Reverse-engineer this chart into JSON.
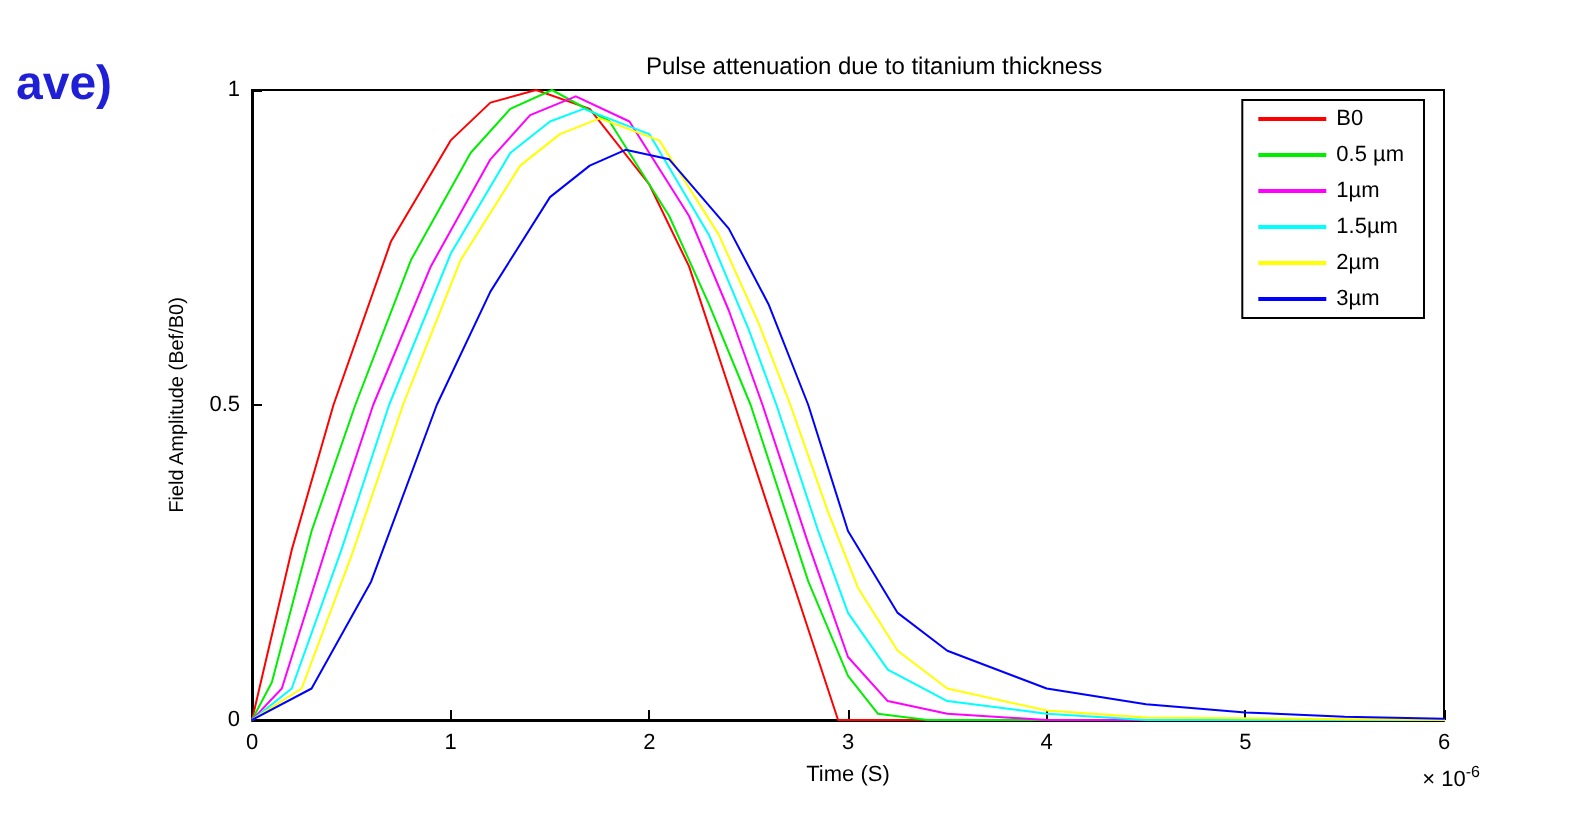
{
  "chart_data": {
    "type": "line",
    "title": "Pulse attenuation due to titanium thickness",
    "xlabel": "Time (S)",
    "ylabel": "Field Amplitude (Bef/B0)",
    "annotations": [
      "ave)",
      "× 10$^{-6}$"
    ],
    "xlim": [
      0,
      6
    ],
    "xticks": [
      0,
      1,
      2,
      3,
      4,
      5,
      6
    ],
    "ylim": [
      0,
      1
    ],
    "yticks": [
      0,
      0.5,
      1
    ],
    "grid": false,
    "legend": "top right",
    "marker": "none",
    "line_style": "solid",
    "series": [
      {
        "name": "B0",
        "color": "#ff0000",
        "x": [
          0,
          0.2,
          0.41,
          0.7,
          1,
          1.2,
          1.43,
          1.7,
          2,
          2.2,
          2.43,
          2.7,
          2.95,
          6
        ],
        "values": [
          0,
          0.27,
          0.5,
          0.76,
          0.92,
          0.98,
          1,
          0.97,
          0.85,
          0.72,
          0.5,
          0.24,
          0,
          0
        ]
      },
      {
        "name": "0.5 µm",
        "color": "#00ee00",
        "x": [
          0,
          0.1,
          0.3,
          0.52,
          0.8,
          1.1,
          1.3,
          1.51,
          1.8,
          2.1,
          2.3,
          2.51,
          2.8,
          3.0,
          3.15,
          3.4,
          6
        ],
        "values": [
          0,
          0.06,
          0.3,
          0.5,
          0.73,
          0.9,
          0.97,
          1,
          0.95,
          0.8,
          0.66,
          0.5,
          0.22,
          0.07,
          0.01,
          0,
          0
        ]
      },
      {
        "name": "1µm",
        "color": "#ff00ff",
        "x": [
          0,
          0.15,
          0.4,
          0.61,
          0.9,
          1.2,
          1.4,
          1.63,
          1.9,
          2.2,
          2.4,
          2.57,
          2.8,
          3.0,
          3.2,
          3.5,
          4,
          6
        ],
        "values": [
          0,
          0.05,
          0.3,
          0.5,
          0.72,
          0.89,
          0.96,
          0.99,
          0.95,
          0.8,
          0.65,
          0.5,
          0.28,
          0.1,
          0.03,
          0.01,
          0,
          0
        ]
      },
      {
        "name": "1.5µm",
        "color": "#00ffff",
        "x": [
          0,
          0.2,
          0.45,
          0.69,
          1,
          1.3,
          1.5,
          1.67,
          2,
          2.3,
          2.5,
          2.64,
          2.85,
          3.0,
          3.2,
          3.5,
          4,
          4.5,
          6
        ],
        "values": [
          0,
          0.05,
          0.27,
          0.5,
          0.74,
          0.9,
          0.95,
          0.97,
          0.93,
          0.77,
          0.62,
          0.5,
          0.3,
          0.17,
          0.08,
          0.03,
          0.01,
          0,
          0
        ]
      },
      {
        "name": "2µm",
        "color": "#ffff00",
        "x": [
          0,
          0.25,
          0.5,
          0.76,
          1.05,
          1.35,
          1.55,
          1.75,
          2.05,
          2.35,
          2.55,
          2.71,
          2.9,
          3.05,
          3.25,
          3.5,
          4,
          4.5,
          6
        ],
        "values": [
          0,
          0.05,
          0.26,
          0.5,
          0.73,
          0.88,
          0.93,
          0.955,
          0.92,
          0.77,
          0.63,
          0.5,
          0.33,
          0.21,
          0.11,
          0.05,
          0.015,
          0.004,
          0
        ]
      },
      {
        "name": "3µm",
        "color": "#0000ff",
        "x": [
          0,
          0.3,
          0.6,
          0.93,
          1.2,
          1.5,
          1.7,
          1.88,
          2.1,
          2.4,
          2.6,
          2.8,
          3.0,
          3.25,
          3.5,
          4,
          4.5,
          5,
          5.5,
          6
        ],
        "values": [
          0,
          0.05,
          0.22,
          0.5,
          0.68,
          0.83,
          0.88,
          0.905,
          0.89,
          0.78,
          0.66,
          0.5,
          0.3,
          0.17,
          0.11,
          0.05,
          0.025,
          0.012,
          0.005,
          0.002
        ]
      }
    ]
  }
}
